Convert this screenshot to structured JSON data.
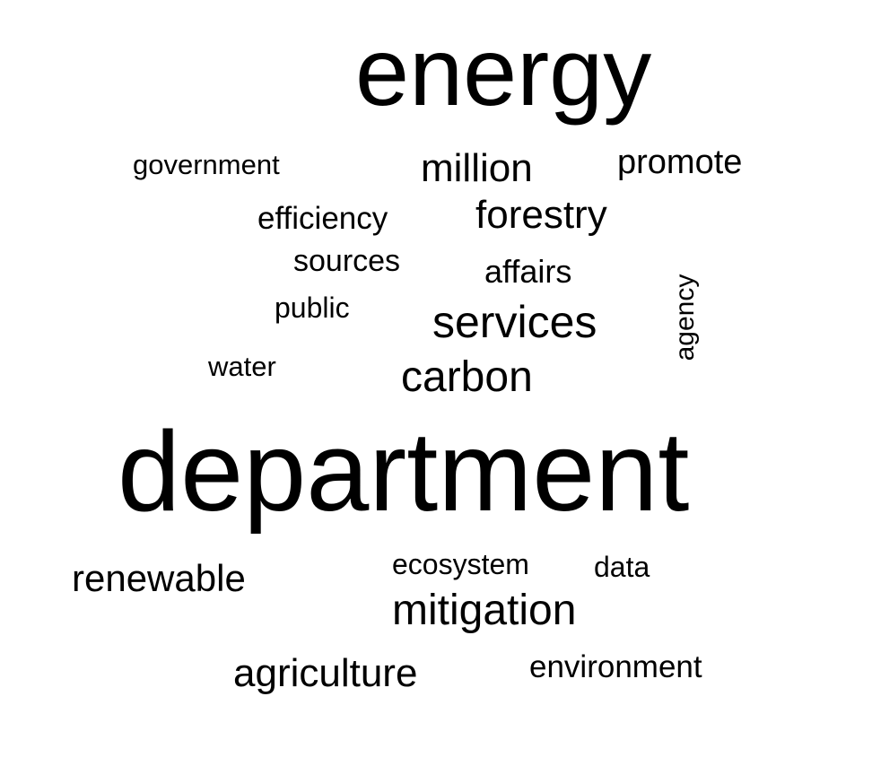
{
  "word_cloud": {
    "text_color": "#000000",
    "background_color": "#ffffff",
    "words": [
      {
        "text": "energy"
      },
      {
        "text": "government"
      },
      {
        "text": "million"
      },
      {
        "text": "promote"
      },
      {
        "text": "efficiency"
      },
      {
        "text": "forestry"
      },
      {
        "text": "sources"
      },
      {
        "text": "affairs"
      },
      {
        "text": "public"
      },
      {
        "text": "services"
      },
      {
        "text": "agency",
        "orientation": "vertical"
      },
      {
        "text": "water"
      },
      {
        "text": "carbon"
      },
      {
        "text": "department"
      },
      {
        "text": "ecosystem"
      },
      {
        "text": "data"
      },
      {
        "text": "renewable"
      },
      {
        "text": "mitigation"
      },
      {
        "text": "agriculture"
      },
      {
        "text": "environment"
      }
    ]
  }
}
